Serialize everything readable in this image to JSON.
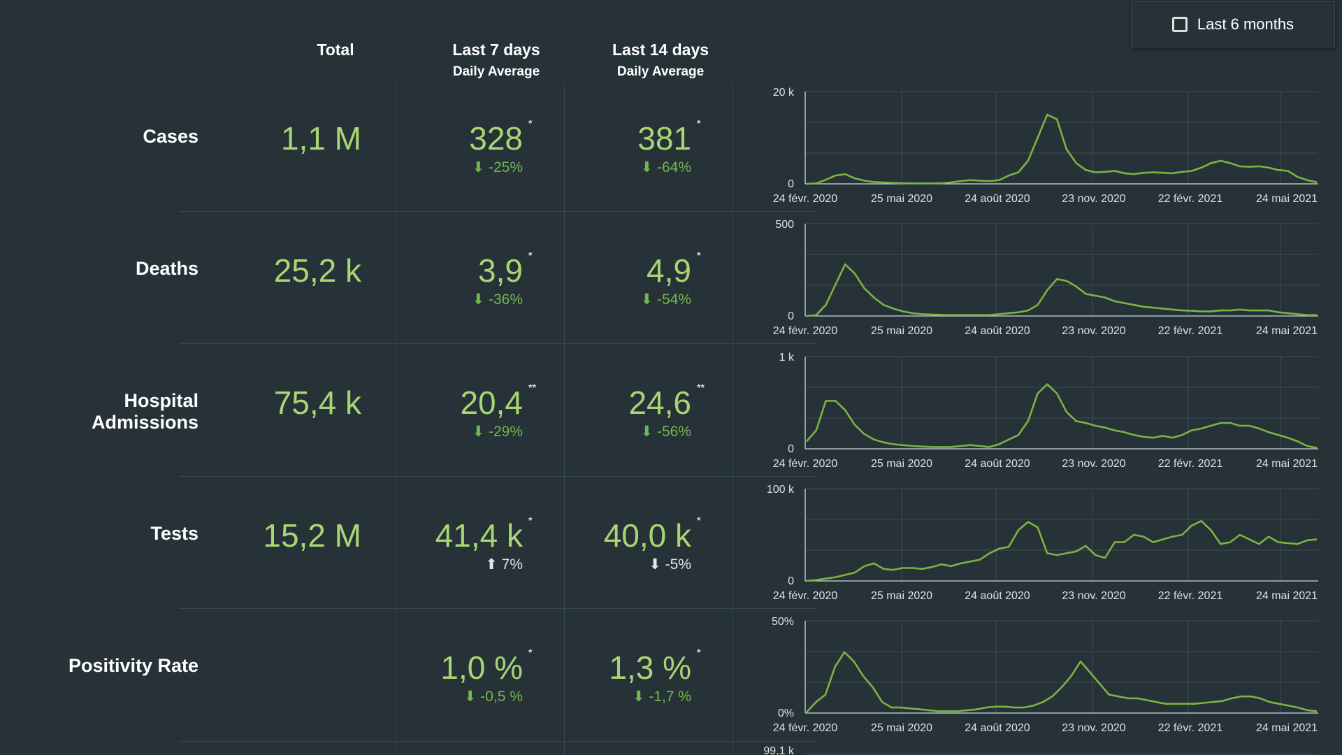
{
  "header": {
    "total": "Total",
    "last7": "Last 7 days",
    "last7_sub": "Daily Average",
    "last14": "Last 14 days",
    "last14_sub": "Daily Average"
  },
  "toggle": {
    "label": "Last 6 months",
    "checked": false
  },
  "rows": [
    {
      "label": "Cases",
      "total": "1,1 M",
      "avg7": "328",
      "avg7_mark": "*",
      "chg7": "⬇ -25%",
      "chg7_dir": "down",
      "avg14": "381",
      "avg14_mark": "*",
      "chg14": "⬇ -64%",
      "chg14_dir": "down"
    },
    {
      "label": "Deaths",
      "total": "25,2 k",
      "avg7": "3,9",
      "avg7_mark": "*",
      "chg7": "⬇ -36%",
      "chg7_dir": "down",
      "avg14": "4,9",
      "avg14_mark": "*",
      "chg14": "⬇ -54%",
      "chg14_dir": "down"
    },
    {
      "label": "Hospital Admissions",
      "total": "75,4 k",
      "avg7": "20,4",
      "avg7_mark": "**",
      "chg7": "⬇ -29%",
      "chg7_dir": "down",
      "avg14": "24,6",
      "avg14_mark": "**",
      "chg14": "⬇ -56%",
      "chg14_dir": "down"
    },
    {
      "label": "Tests",
      "total": "15,2 M",
      "avg7": "41,4 k",
      "avg7_mark": "*",
      "chg7": "⬆ 7%",
      "chg7_dir": "up",
      "avg14": "40,0 k",
      "avg14_mark": "*",
      "chg14": "⬇ -5%",
      "chg14_dir": "down-neutral"
    },
    {
      "label": "Positivity Rate",
      "total": "",
      "avg7": "1,0 %",
      "avg7_mark": "*",
      "chg7": "⬇ -0,5 %",
      "chg7_dir": "down",
      "avg14": "1,3 %",
      "avg14_mark": "*",
      "chg14": "⬇ -1,7 %",
      "chg14_dir": "down"
    }
  ],
  "colors": {
    "background": "#263238",
    "accent": "#a8d672",
    "line": "#7cb342",
    "good": "#72b84c",
    "grid": "#455a64"
  },
  "chart_data": [
    {
      "type": "line",
      "series": [
        {
          "name": "",
          "values": [
            0,
            100,
            900,
            1800,
            2100,
            1200,
            700,
            400,
            300,
            200,
            150,
            100,
            100,
            100,
            150,
            300,
            600,
            800,
            700,
            600,
            800,
            1800,
            2500,
            5000,
            10000,
            15000,
            14000,
            7500,
            4500,
            3000,
            2500,
            2600,
            2800,
            2300,
            2100,
            2400,
            2500,
            2400,
            2300,
            2600,
            2800,
            3500,
            4500,
            5000,
            4500,
            3800,
            3700,
            3800,
            3500,
            3000,
            2800,
            1500,
            800,
            350
          ]
        }
      ],
      "x_tick_labels": [
        "24 févr. 2020",
        "25 mai 2020",
        "24 août 2020",
        "23 nov. 2020",
        "22 févr. 2021",
        "24 mai 2021"
      ],
      "y_tick_labels": [
        "0",
        "20 k"
      ],
      "ylim": [
        0,
        20000
      ]
    },
    {
      "type": "line",
      "series": [
        {
          "name": "",
          "values": [
            0,
            5,
            60,
            170,
            280,
            230,
            150,
            100,
            60,
            40,
            25,
            15,
            10,
            8,
            6,
            5,
            5,
            5,
            5,
            5,
            10,
            15,
            20,
            30,
            60,
            140,
            200,
            190,
            160,
            120,
            110,
            100,
            80,
            70,
            60,
            50,
            45,
            40,
            35,
            30,
            28,
            25,
            25,
            30,
            30,
            35,
            30,
            30,
            30,
            20,
            15,
            10,
            5,
            5
          ]
        }
      ],
      "x_tick_labels": [
        "24 févr. 2020",
        "25 mai 2020",
        "24 août 2020",
        "23 nov. 2020",
        "22 févr. 2021",
        "24 mai 2021"
      ],
      "y_tick_labels": [
        "0",
        "500"
      ],
      "ylim": [
        0,
        500
      ]
    },
    {
      "type": "line",
      "series": [
        {
          "name": "",
          "values": [
            80,
            200,
            520,
            520,
            420,
            260,
            160,
            100,
            70,
            50,
            40,
            30,
            25,
            20,
            20,
            20,
            30,
            40,
            30,
            20,
            50,
            100,
            150,
            300,
            600,
            700,
            600,
            400,
            300,
            280,
            250,
            230,
            200,
            180,
            150,
            130,
            120,
            140,
            120,
            150,
            200,
            220,
            250,
            280,
            280,
            250,
            250,
            220,
            180,
            150,
            120,
            80,
            30,
            10
          ]
        }
      ],
      "x_tick_labels": [
        "24 févr. 2020",
        "25 mai 2020",
        "24 août 2020",
        "23 nov. 2020",
        "22 févr. 2021",
        "24 mai 2021"
      ],
      "y_tick_labels": [
        "0",
        "1 k"
      ],
      "ylim": [
        0,
        1000
      ]
    },
    {
      "type": "line",
      "series": [
        {
          "name": "",
          "values": [
            0,
            1000,
            2500,
            4000,
            6500,
            9000,
            16000,
            19000,
            13000,
            12000,
            14000,
            14000,
            13000,
            15000,
            18000,
            16000,
            19000,
            21000,
            23000,
            30000,
            35000,
            37000,
            55000,
            64000,
            58000,
            30000,
            28000,
            30000,
            32000,
            38000,
            28000,
            25000,
            42000,
            42000,
            50000,
            48000,
            42000,
            45000,
            48000,
            50000,
            60000,
            65000,
            55000,
            40000,
            42000,
            50000,
            45000,
            40000,
            48000,
            42000,
            41000,
            40000,
            44000,
            45000
          ]
        }
      ],
      "x_tick_labels": [
        "24 févr. 2020",
        "25 mai 2020",
        "24 août 2020",
        "23 nov. 2020",
        "22 févr. 2021",
        "24 mai 2021"
      ],
      "y_tick_labels": [
        "0",
        "100 k"
      ],
      "ylim": [
        0,
        100000
      ]
    },
    {
      "type": "line",
      "series": [
        {
          "name": "",
          "values": [
            0.5,
            6,
            10,
            25,
            33,
            28,
            20,
            14,
            6,
            3,
            3,
            2.5,
            2,
            1.5,
            1,
            1,
            1,
            1.5,
            2,
            3,
            3.5,
            3.5,
            3,
            3,
            4,
            6,
            9,
            14,
            20,
            28,
            22,
            16,
            10,
            9,
            8,
            8,
            7,
            6,
            5,
            5,
            5,
            5,
            5.5,
            6,
            6.5,
            8,
            9,
            9,
            8,
            6,
            5,
            4,
            3,
            1.5,
            1
          ]
        }
      ],
      "x_tick_labels": [
        "24 févr. 2020",
        "25 mai 2020",
        "24 août 2020",
        "23 nov. 2020",
        "22 févr. 2021",
        "24 mai 2021"
      ],
      "y_tick_labels": [
        "0%",
        "50%"
      ],
      "ylim": [
        0,
        50
      ]
    }
  ],
  "partial_next_row": {
    "y_top_tick": "99,1 k"
  }
}
